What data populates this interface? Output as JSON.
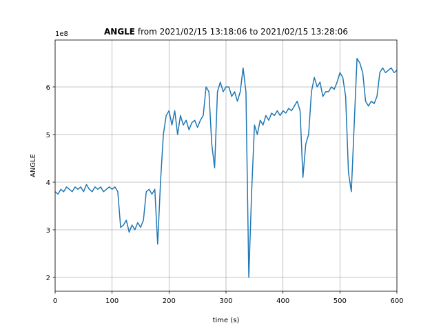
{
  "chart_data": {
    "type": "line",
    "title": "ANGLE",
    "subtitle": "from 2021/02/15 13:18:06 to 2021/02/15 13:28:06",
    "x_label": "time (s)",
    "y_label": "ANGLE",
    "y_offset_label": "1e8",
    "xlim": [
      0,
      600
    ],
    "ylim": [
      1.71,
      6.985
    ],
    "xticks": [
      0,
      100,
      200,
      300,
      400,
      500,
      600
    ],
    "yticks": [
      2,
      3,
      4,
      5,
      6
    ],
    "grid": true,
    "x": [
      0,
      5,
      10,
      15,
      20,
      25,
      30,
      35,
      40,
      45,
      50,
      55,
      60,
      65,
      70,
      75,
      80,
      85,
      90,
      95,
      100,
      105,
      110,
      115,
      120,
      125,
      130,
      135,
      140,
      145,
      150,
      155,
      160,
      165,
      170,
      175,
      180,
      185,
      190,
      195,
      200,
      205,
      210,
      215,
      220,
      225,
      230,
      235,
      240,
      245,
      250,
      255,
      260,
      265,
      270,
      275,
      280,
      285,
      290,
      295,
      300,
      305,
      310,
      315,
      320,
      325,
      330,
      335,
      340,
      345,
      350,
      355,
      360,
      365,
      370,
      375,
      380,
      385,
      390,
      395,
      400,
      405,
      410,
      415,
      420,
      425,
      430,
      435,
      440,
      445,
      450,
      455,
      460,
      465,
      470,
      475,
      480,
      485,
      490,
      495,
      500,
      505,
      510,
      515,
      520,
      525,
      530,
      535,
      540,
      545,
      550,
      555,
      560,
      565,
      570,
      575,
      580,
      585,
      590,
      595,
      600
    ],
    "series": [
      {
        "name": "ANGLE",
        "color": "#1f77b4",
        "values": [
          3.8,
          3.75,
          3.85,
          3.8,
          3.9,
          3.85,
          3.8,
          3.9,
          3.85,
          3.9,
          3.8,
          3.95,
          3.85,
          3.8,
          3.9,
          3.85,
          3.9,
          3.8,
          3.85,
          3.9,
          3.85,
          3.9,
          3.8,
          3.05,
          3.1,
          3.2,
          2.95,
          3.1,
          3.0,
          3.15,
          3.05,
          3.2,
          3.8,
          3.85,
          3.75,
          3.85,
          2.7,
          4.0,
          5.0,
          5.4,
          5.5,
          5.2,
          5.5,
          5.0,
          5.4,
          5.2,
          5.3,
          5.1,
          5.25,
          5.3,
          5.15,
          5.3,
          5.4,
          6.0,
          5.9,
          4.8,
          4.3,
          5.9,
          6.1,
          5.9,
          6.0,
          6.0,
          5.8,
          5.9,
          5.7,
          5.9,
          6.4,
          5.9,
          2.0,
          3.8,
          5.2,
          5.0,
          5.3,
          5.2,
          5.4,
          5.3,
          5.45,
          5.4,
          5.5,
          5.4,
          5.5,
          5.45,
          5.55,
          5.5,
          5.6,
          5.7,
          5.5,
          4.1,
          4.8,
          5.0,
          5.9,
          6.2,
          6.0,
          6.1,
          5.8,
          5.9,
          5.9,
          6.0,
          5.95,
          6.1,
          6.3,
          6.2,
          5.8,
          4.2,
          3.8,
          5.2,
          6.6,
          6.5,
          6.3,
          5.7,
          5.6,
          5.7,
          5.65,
          5.8,
          6.3,
          6.4,
          6.3,
          6.35,
          6.4,
          6.3,
          6.35
        ]
      }
    ]
  }
}
